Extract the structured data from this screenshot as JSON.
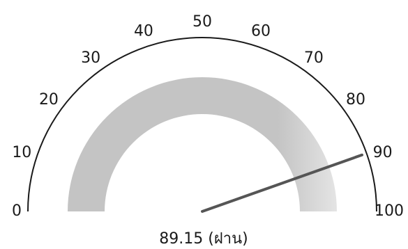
{
  "gauge": {
    "min": 0,
    "max": 100,
    "value": 89.15,
    "tick_step": 10,
    "ticks": [
      "0",
      "10",
      "20",
      "30",
      "40",
      "50",
      "60",
      "70",
      "80",
      "90",
      "100"
    ],
    "readout": "89.15 (ฝาน)",
    "band_range": [
      0,
      100
    ],
    "colors": {
      "arc": "#1a1a1a",
      "band": "#c4c4c4",
      "band_fade": "#e4e4e4",
      "needle": "#555555",
      "text": "#1a1a1a"
    }
  }
}
